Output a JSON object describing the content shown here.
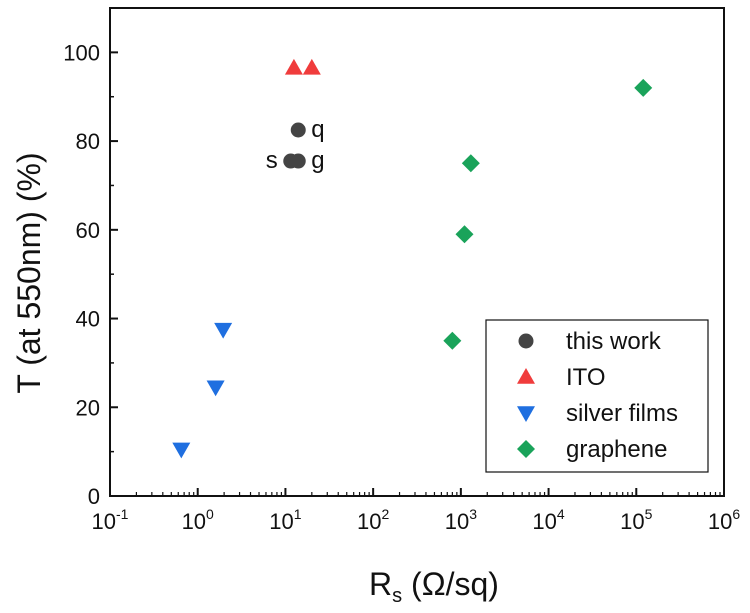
{
  "chart_data": {
    "type": "scatter",
    "title": "",
    "xlabel": "R",
    "xlabel_sub": "s",
    "xlabel_suffix": " (Ω/sq)",
    "ylabel": "T (at 550nm) (%)",
    "xscale": "log",
    "xlim_exp": [
      -1,
      6
    ],
    "ylim": [
      0,
      110
    ],
    "x_ticks": [
      {
        "base": "10",
        "exp": "-1",
        "value": -1
      },
      {
        "base": "10",
        "exp": "0",
        "value": 0
      },
      {
        "base": "10",
        "exp": "1",
        "value": 1
      },
      {
        "base": "10",
        "exp": "2",
        "value": 2
      },
      {
        "base": "10",
        "exp": "3",
        "value": 3
      },
      {
        "base": "10",
        "exp": "4",
        "value": 4
      },
      {
        "base": "10",
        "exp": "5",
        "value": 5
      },
      {
        "base": "10",
        "exp": "6",
        "value": 6
      }
    ],
    "y_ticks": [
      {
        "label": "0",
        "value": 0
      },
      {
        "label": "20",
        "value": 20
      },
      {
        "label": "40",
        "value": 40
      },
      {
        "label": "60",
        "value": 60
      },
      {
        "label": "80",
        "value": 80
      },
      {
        "label": "100",
        "value": 100
      }
    ],
    "legend_position": "bottom-right",
    "series": [
      {
        "name": "this work",
        "marker": "circle",
        "color": "#444444",
        "points": [
          {
            "x": 14,
            "y": 82.5
          },
          {
            "x": 11.5,
            "y": 75.5
          },
          {
            "x": 14,
            "y": 75.5
          }
        ]
      },
      {
        "name": "ITO",
        "marker": "triangle-up",
        "color": "#f03c3c",
        "points": [
          {
            "x": 12.5,
            "y": 96.5
          },
          {
            "x": 20,
            "y": 96.5
          }
        ]
      },
      {
        "name": "silver films",
        "marker": "triangle-down",
        "color": "#1f6fe0",
        "points": [
          {
            "x": 0.65,
            "y": 10.5
          },
          {
            "x": 1.6,
            "y": 24.5
          },
          {
            "x": 1.95,
            "y": 37.5
          }
        ]
      },
      {
        "name": "graphene",
        "marker": "diamond",
        "color": "#1aa35a",
        "points": [
          {
            "x": 800,
            "y": 35
          },
          {
            "x": 1100,
            "y": 59
          },
          {
            "x": 1300,
            "y": 75
          },
          {
            "x": 120000,
            "y": 92
          }
        ]
      }
    ],
    "annotations": [
      {
        "text": "q",
        "x": 14,
        "y": 82.5,
        "side": "right"
      },
      {
        "text": "s",
        "x": 11.5,
        "y": 75.5,
        "side": "left"
      },
      {
        "text": "g",
        "x": 14,
        "y": 75.5,
        "side": "right"
      }
    ]
  }
}
